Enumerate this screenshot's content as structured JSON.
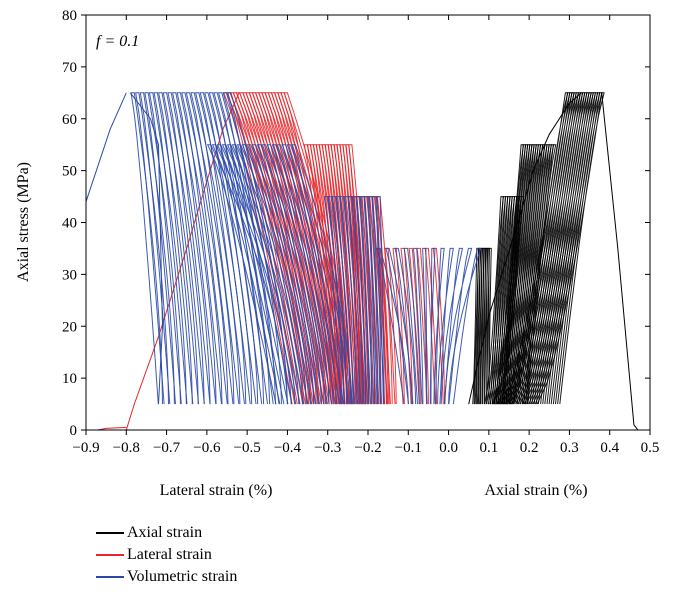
{
  "chart_data": {
    "type": "line",
    "annotation": "f = 0.1",
    "xlabel_left": "Lateral strain (%)",
    "xlabel_right": "Axial strain (%)",
    "ylabel": "Axial stress (MPa)",
    "xlim": [
      -0.9,
      0.5
    ],
    "ylim": [
      0,
      80
    ],
    "xticks": [
      "−0.9",
      "−0.8",
      "−0.7",
      "−0.6",
      "−0.5",
      "−0.4",
      "−0.3",
      "−0.2",
      "−0.1",
      "0.0",
      "0.1",
      "0.2",
      "0.3",
      "0.4",
      "0.5"
    ],
    "xtick_values": [
      -0.9,
      -0.8,
      -0.7,
      -0.6,
      -0.5,
      -0.4,
      -0.3,
      -0.2,
      -0.1,
      0.0,
      0.1,
      0.2,
      0.3,
      0.4,
      0.5
    ],
    "yticks": [
      "0",
      "10",
      "20",
      "30",
      "40",
      "50",
      "60",
      "70",
      "80"
    ],
    "ytick_values": [
      0,
      10,
      20,
      30,
      40,
      50,
      60,
      70,
      80
    ],
    "grid": false,
    "legend_position": "bottom-left",
    "colors": {
      "axial": "#000000",
      "lateral": "#e8262a",
      "volumetric": "#2b4aa8"
    },
    "stress_levels": [
      35,
      45,
      55,
      65
    ],
    "min_stress": 5,
    "series": [
      {
        "name": "Axial strain",
        "key": "axial",
        "color": "#000000",
        "initial_loading": [
          [
            0.05,
            5
          ],
          [
            0.07,
            12
          ],
          [
            0.1,
            22
          ],
          [
            0.14,
            32
          ],
          [
            0.18,
            42
          ],
          [
            0.21,
            50
          ],
          [
            0.25,
            57
          ],
          [
            0.3,
            63
          ],
          [
            0.33,
            65
          ]
        ],
        "cycles": [
          {
            "peak": 35,
            "x_start": [
              0.06,
              0.1
            ],
            "x_peak": [
              0.07,
              0.1
            ],
            "count": 8
          },
          {
            "peak": 45,
            "x_start": [
              0.09,
              0.13
            ],
            "x_peak": [
              0.13,
              0.18
            ],
            "count": 10
          },
          {
            "peak": 55,
            "x_start": [
              0.11,
              0.16
            ],
            "x_peak": [
              0.18,
              0.26
            ],
            "count": 16
          },
          {
            "peak": 65,
            "x_start": [
              0.13,
              0.22
            ],
            "x_peak": [
              0.29,
              0.38
            ],
            "count": 18
          }
        ],
        "failure": [
          [
            0.38,
            65
          ],
          [
            0.42,
            35
          ],
          [
            0.46,
            1
          ],
          [
            0.47,
            0
          ]
        ]
      },
      {
        "name": "Lateral strain",
        "key": "lateral",
        "color": "#e8262a",
        "initial_loading": [
          [
            -0.8,
            0
          ],
          [
            -0.78,
            5
          ],
          [
            -0.72,
            18
          ],
          [
            -0.65,
            35
          ],
          [
            -0.6,
            48
          ],
          [
            -0.56,
            58
          ],
          [
            -0.52,
            65
          ]
        ],
        "cycles": [
          {
            "peak": 35,
            "x_start": [
              -0.01,
              -0.15
            ],
            "x_peak": [
              -0.03,
              -0.17
            ],
            "count": 8
          },
          {
            "peak": 45,
            "x_start": [
              -0.14,
              -0.22
            ],
            "x_peak": [
              -0.17,
              -0.24
            ],
            "count": 12
          },
          {
            "peak": 55,
            "x_start": [
              -0.2,
              -0.28
            ],
            "x_peak": [
              -0.24,
              -0.35
            ],
            "count": 16
          },
          {
            "peak": 65,
            "x_start": [
              -0.24,
              -0.36
            ],
            "x_peak": [
              -0.4,
              -0.55
            ],
            "count": 20
          }
        ],
        "failure": [
          [
            -0.8,
            0.5
          ],
          [
            -0.85,
            0.3
          ],
          [
            -0.87,
            0
          ]
        ]
      },
      {
        "name": "Volumetric strain",
        "key": "volumetric",
        "color": "#2b4aa8",
        "initial_loading": [
          [
            -0.9,
            44
          ],
          [
            -0.84,
            58
          ],
          [
            -0.8,
            65
          ]
        ],
        "cycles": [
          {
            "peak": 35,
            "x_start": [
              0.0,
              -0.1
            ],
            "x_peak": [
              0.08,
              -0.17
            ],
            "count": 12
          },
          {
            "peak": 45,
            "x_start": [
              -0.16,
              -0.26
            ],
            "x_peak": [
              -0.17,
              -0.3
            ],
            "count": 14
          },
          {
            "peak": 55,
            "x_start": [
              -0.24,
              -0.4
            ],
            "x_peak": [
              -0.38,
              -0.59
            ],
            "count": 18
          },
          {
            "peak": 65,
            "x_start": [
              -0.4,
              -0.71
            ],
            "x_peak": [
              -0.54,
              -0.78
            ],
            "count": 22
          }
        ],
        "failure": [
          [
            -0.79,
            65
          ],
          [
            -0.74,
            60
          ],
          [
            -0.72,
            55
          ],
          [
            -0.71,
            20
          ],
          [
            -0.72,
            5
          ]
        ]
      }
    ]
  }
}
